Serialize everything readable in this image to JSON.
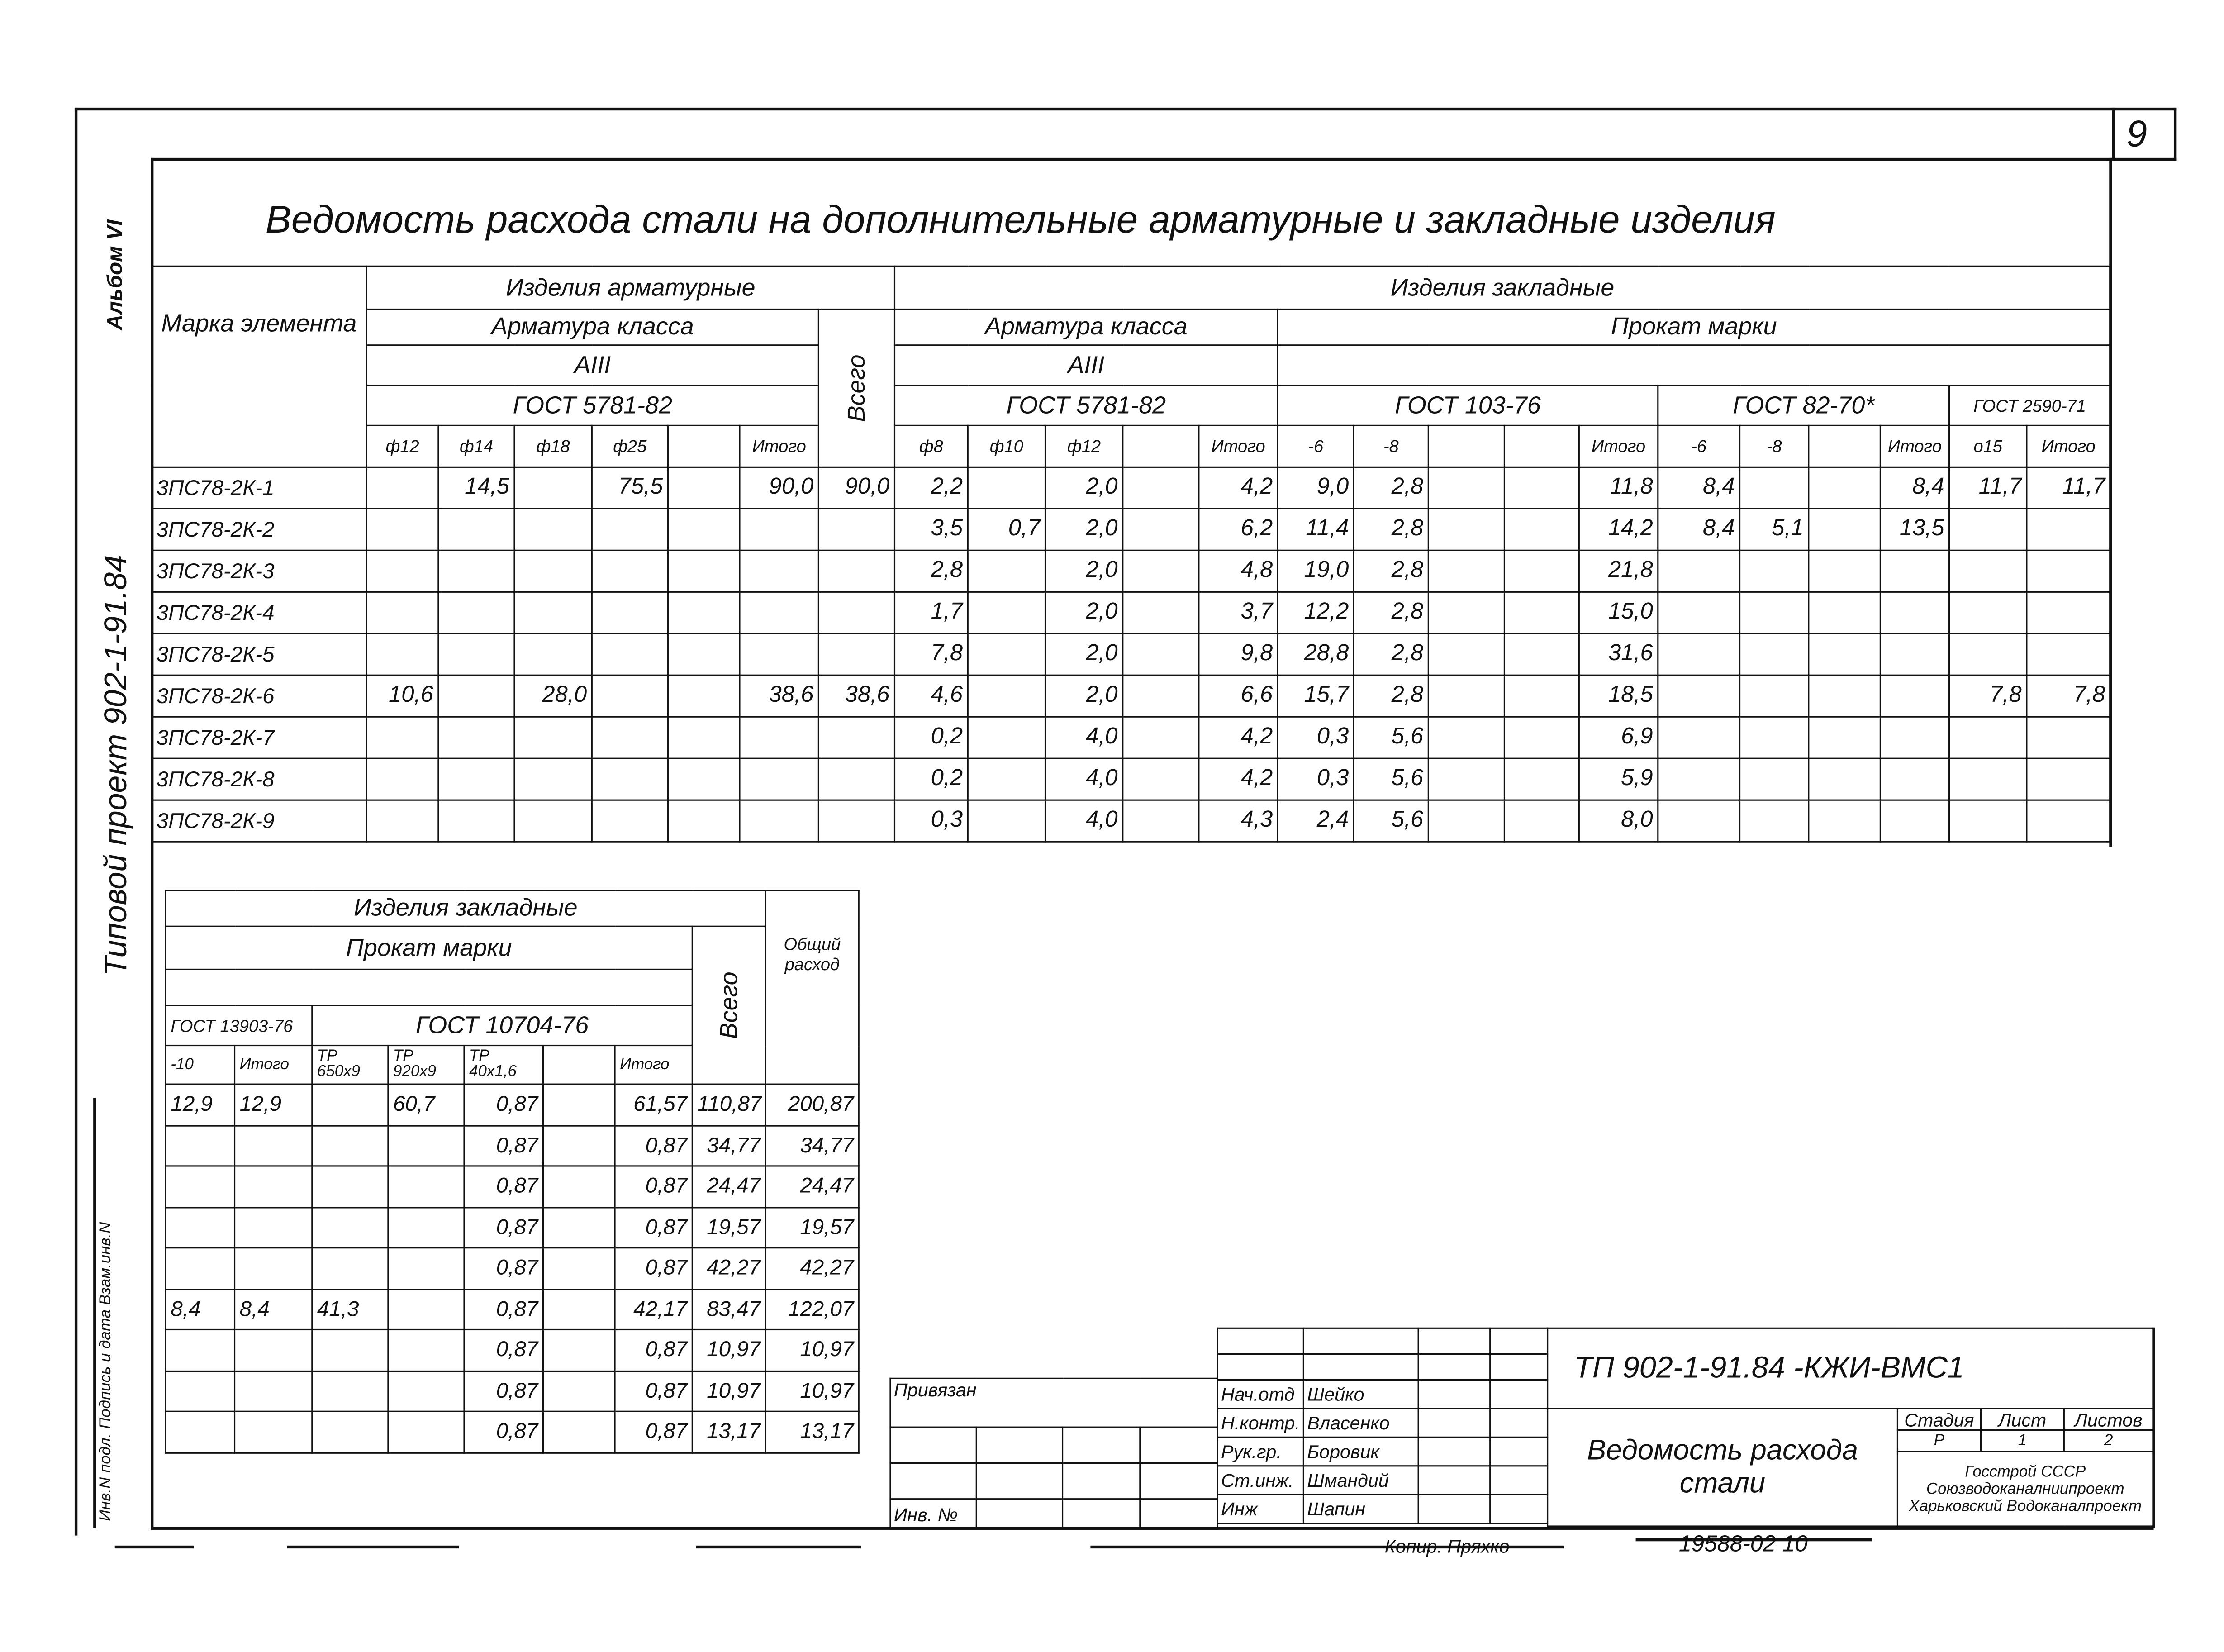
{
  "page_number": "9",
  "album": "Альбом VI",
  "project": "Типовой проект 902-1-91.84",
  "title": "Ведомость расхода стали на дополнительные арматурные и закладные изделия",
  "top_table": {
    "mark_header": "Марка элемента",
    "rebar_products": "Изделия арматурные",
    "embedded_products": "Изделия закладные",
    "rebar_class": "Арматура класса",
    "rebar_class_value": "AIII",
    "gost_5781": "ГОСТ 5781-82",
    "total_all": "Всего",
    "rolled_grade": "Прокат марки",
    "gost_103": "ГОСТ 103-76",
    "gost_82": "ГОСТ 82-70*",
    "gost_2590": "ГОСТ 2590-71",
    "columns": [
      "ф12",
      "ф14",
      "ф18",
      "ф25",
      "",
      "Итого",
      "ф8",
      "ф10",
      "ф12",
      "",
      "Итого",
      "-6",
      "-8",
      "",
      "",
      "Итого",
      "-6",
      "-8",
      "",
      "Итого",
      "о15",
      "Итого"
    ],
    "marks": [
      "3ПС78-2К-1",
      "3ПС78-2К-2",
      "3ПС78-2К-3",
      "3ПС78-2К-4",
      "3ПС78-2К-5",
      "3ПС78-2К-6",
      "3ПС78-2К-7",
      "3ПС78-2К-8",
      "3ПС78-2К-9"
    ],
    "rows": [
      [
        "",
        "14,5",
        "",
        "75,5",
        "",
        "90,0",
        "90,0",
        "2,2",
        "",
        "2,0",
        "",
        "4,2",
        "9,0",
        "2,8",
        "",
        "",
        "11,8",
        "8,4",
        "",
        "",
        "8,4",
        "11,7",
        "11,7"
      ],
      [
        "",
        "",
        "",
        "",
        "",
        "",
        "",
        "3,5",
        "0,7",
        "2,0",
        "",
        "6,2",
        "11,4",
        "2,8",
        "",
        "",
        "14,2",
        "8,4",
        "5,1",
        "",
        "13,5",
        "",
        ""
      ],
      [
        "",
        "",
        "",
        "",
        "",
        "",
        "",
        "2,8",
        "",
        "2,0",
        "",
        "4,8",
        "19,0",
        "2,8",
        "",
        "",
        "21,8",
        "",
        "",
        "",
        "",
        "",
        ""
      ],
      [
        "",
        "",
        "",
        "",
        "",
        "",
        "",
        "1,7",
        "",
        "2,0",
        "",
        "3,7",
        "12,2",
        "2,8",
        "",
        "",
        "15,0",
        "",
        "",
        "",
        "",
        "",
        ""
      ],
      [
        "",
        "",
        "",
        "",
        "",
        "",
        "",
        "7,8",
        "",
        "2,0",
        "",
        "9,8",
        "28,8",
        "2,8",
        "",
        "",
        "31,6",
        "",
        "",
        "",
        "",
        "",
        ""
      ],
      [
        "10,6",
        "",
        "28,0",
        "",
        "",
        "38,6",
        "38,6",
        "4,6",
        "",
        "2,0",
        "",
        "6,6",
        "15,7",
        "2,8",
        "",
        "",
        "18,5",
        "",
        "",
        "",
        "",
        "7,8",
        "7,8"
      ],
      [
        "",
        "",
        "",
        "",
        "",
        "",
        "",
        "0,2",
        "",
        "4,0",
        "",
        "4,2",
        "0,3",
        "5,6",
        "",
        "",
        "6,9",
        "",
        "",
        "",
        "",
        "",
        ""
      ],
      [
        "",
        "",
        "",
        "",
        "",
        "",
        "",
        "0,2",
        "",
        "4,0",
        "",
        "4,2",
        "0,3",
        "5,6",
        "",
        "",
        "5,9",
        "",
        "",
        "",
        "",
        "",
        ""
      ],
      [
        "",
        "",
        "",
        "",
        "",
        "",
        "",
        "0,3",
        "",
        "4,0",
        "",
        "4,3",
        "2,4",
        "5,6",
        "",
        "",
        "8,0",
        "",
        "",
        "",
        "",
        "",
        ""
      ]
    ]
  },
  "bottom_table": {
    "embedded_products": "Изделия закладные",
    "rolled_grade": "Прокат марки",
    "total_all": "Всего",
    "total_consumption": "Общий расход",
    "gost_13903": "ГОСТ 13903-76",
    "gost_10704": "ГОСТ 10704-76",
    "columns": [
      "-10",
      "Итого",
      "ТР 650x9",
      "ТР 920x9",
      "ТР 40x1,6",
      "",
      "Итого"
    ],
    "rows": [
      [
        "12,9",
        "12,9",
        "",
        "60,7",
        "0,87",
        "",
        "61,57",
        "110,87",
        "200,87"
      ],
      [
        "",
        "",
        "",
        "",
        "0,87",
        "",
        "0,87",
        "34,77",
        "34,77"
      ],
      [
        "",
        "",
        "",
        "",
        "0,87",
        "",
        "0,87",
        "24,47",
        "24,47"
      ],
      [
        "",
        "",
        "",
        "",
        "0,87",
        "",
        "0,87",
        "19,57",
        "19,57"
      ],
      [
        "",
        "",
        "",
        "",
        "0,87",
        "",
        "0,87",
        "42,27",
        "42,27"
      ],
      [
        "8,4",
        "8,4",
        "41,3",
        "",
        "0,87",
        "",
        "42,17",
        "83,47",
        "122,07"
      ],
      [
        "",
        "",
        "",
        "",
        "0,87",
        "",
        "0,87",
        "10,97",
        "10,97"
      ],
      [
        "",
        "",
        "",
        "",
        "0,87",
        "",
        "0,87",
        "10,97",
        "10,97"
      ],
      [
        "",
        "",
        "",
        "",
        "0,87",
        "",
        "0,87",
        "13,17",
        "13,17"
      ]
    ]
  },
  "stamp_side": "Инв.N подл. Подпись и дата Взам.инв.N",
  "title_block": {
    "bound": "Привязан",
    "inv_no": "Инв. №",
    "code": "ТП 902-1-91.84 -КЖИ-ВМС1",
    "sheet_title": "Ведомость расхода стали",
    "stage_label": "Стадия",
    "sheet_label": "Лист",
    "sheets_label": "Листов",
    "stage": "Р",
    "sheet": "1",
    "sheets": "2",
    "organization": "Госстрой СССР Союзводоканалниипроект Харьковский Водоканалпроект",
    "signatures": [
      {
        "role": "Нач.отд",
        "name": "Шейко"
      },
      {
        "role": "Н.контр.",
        "name": "Власенко"
      },
      {
        "role": "Рук.гр.",
        "name": "Боровик"
      },
      {
        "role": "Ст.инж.",
        "name": "Шмандий"
      },
      {
        "role": "Инж",
        "name": "Шапин"
      }
    ]
  },
  "footer": {
    "copied": "Копир. Пряхко",
    "number": "19588-02  10"
  }
}
